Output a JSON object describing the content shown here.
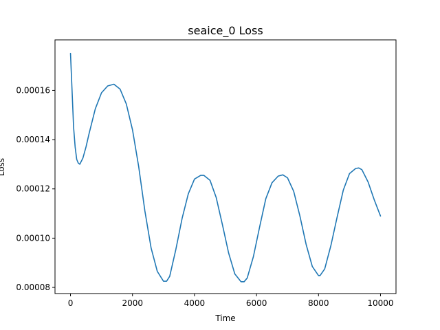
{
  "chart_data": {
    "type": "line",
    "title": "seaice_0 Loss",
    "xlabel": "Time",
    "ylabel": "Loss",
    "xlim": [
      -500,
      10500
    ],
    "ylim": [
      7.75e-05,
      0.0001805
    ],
    "xticks": [
      0,
      2000,
      4000,
      6000,
      8000,
      10000
    ],
    "xtick_labels": [
      "0",
      "2000",
      "4000",
      "6000",
      "8000",
      "10000"
    ],
    "yticks": [
      8e-05,
      0.0001,
      0.00012,
      0.00014,
      0.00016
    ],
    "ytick_labels": [
      "0.00008",
      "0.00010",
      "0.00012",
      "0.00014",
      "0.00016"
    ],
    "grid": false,
    "series": [
      {
        "color": "#1f77b4",
        "x": [
          0,
          50,
          100,
          150,
          200,
          250,
          300,
          400,
          500,
          600,
          800,
          1000,
          1200,
          1400,
          1600,
          1800,
          2000,
          2200,
          2400,
          2600,
          2800,
          3000,
          3100,
          3200,
          3400,
          3600,
          3800,
          4000,
          4200,
          4300,
          4500,
          4700,
          4900,
          5100,
          5300,
          5500,
          5600,
          5700,
          5900,
          6100,
          6300,
          6500,
          6700,
          6850,
          7000,
          7200,
          7400,
          7600,
          7800,
          8000,
          8050,
          8200,
          8400,
          8600,
          8800,
          9000,
          9200,
          9300,
          9400,
          9600,
          9800,
          10000
        ],
        "y": [
          0.000175,
          0.00016,
          0.000145,
          0.000137,
          0.000132,
          0.0001305,
          0.00013,
          0.0001325,
          0.000137,
          0.0001425,
          0.0001525,
          0.000159,
          0.0001618,
          0.0001625,
          0.0001605,
          0.0001545,
          0.000144,
          0.000129,
          0.000111,
          9.6e-05,
          8.65e-05,
          8.25e-05,
          8.25e-05,
          8.45e-05,
          9.55e-05,
          0.000108,
          0.000118,
          0.000124,
          0.0001255,
          0.0001255,
          0.0001235,
          0.0001165,
          0.0001055,
          9.4e-05,
          8.55e-05,
          8.23e-05,
          8.23e-05,
          8.38e-05,
          9.25e-05,
          0.0001045,
          0.000116,
          0.0001225,
          0.0001252,
          0.0001257,
          0.0001245,
          0.000119,
          0.000109,
          9.75e-05,
          8.85e-05,
          8.48e-05,
          8.48e-05,
          8.75e-05,
          9.7e-05,
          0.0001085,
          0.0001195,
          0.0001262,
          0.0001283,
          0.0001285,
          0.0001278,
          0.0001228,
          0.0001155,
          0.000109
        ]
      }
    ]
  }
}
